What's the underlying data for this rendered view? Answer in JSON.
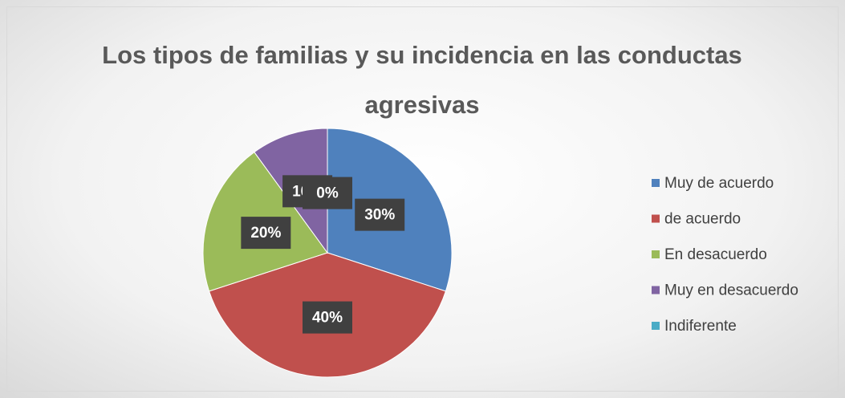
{
  "chart_data": {
    "type": "pie",
    "title": "Los tipos de familias y su incidencia en las conductas agresivas",
    "categories": [
      "Muy de acuerdo",
      "de acuerdo",
      "En desacuerdo",
      "Muy en desacuerdo",
      "Indiferente"
    ],
    "values": [
      30,
      40,
      20,
      10,
      0
    ],
    "value_labels": [
      "30%",
      "40%",
      "20%",
      "10%",
      "0%"
    ],
    "colors": [
      "#4f81bd",
      "#c0504d",
      "#9bbb59",
      "#8064a2",
      "#4bacc6"
    ],
    "legend": "right"
  }
}
